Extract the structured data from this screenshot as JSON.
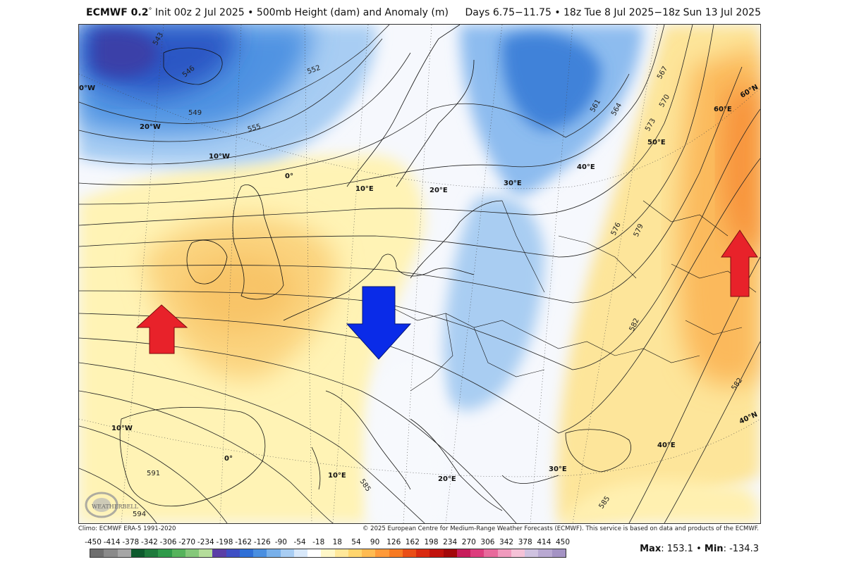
{
  "header": {
    "model": "ECMWF 0.2",
    "degree": "°",
    "init": "Init 00z 2 Jul 2025",
    "sep": "•",
    "field": "500mb Height (dam) and Anomaly (m)",
    "valid": "Days 6.75−11.75 • 18z Tue 8 Jul 2025−18z Sun 13 Jul 2025"
  },
  "footer": {
    "climo": "Climo: ECMWF ERA-5 1991-2020",
    "credit": "© 2025 European Centre for Medium-Range Weather Forecasts (ECMWF). This service is based on data and products of the ECMWF."
  },
  "stats": {
    "max_label": "Max",
    "max_value": "153.1",
    "sep": "•",
    "min_label": "Min",
    "min_value": "-134.3"
  },
  "logo_text": "WEATHERBELL",
  "colorbar": {
    "labels": [
      "-450",
      "-414",
      "-378",
      "-342",
      "-306",
      "-270",
      "-234",
      "-198",
      "-162",
      "-126",
      "-90",
      "-54",
      "-18",
      "18",
      "54",
      "90",
      "126",
      "162",
      "198",
      "234",
      "270",
      "306",
      "342",
      "378",
      "414",
      "450"
    ],
    "colors": [
      "#6e6e6e",
      "#8a8a8a",
      "#a6a6a6",
      "#0d5a2d",
      "#1e7a3c",
      "#2f9a4a",
      "#56b35c",
      "#85c87a",
      "#b5dd9b",
      "#5b3fa6",
      "#3f4fc4",
      "#2f6fd6",
      "#4a8fe0",
      "#78b0ea",
      "#a8cdf3",
      "#d8e8fa",
      "#ffffff",
      "#fff7c8",
      "#ffe89a",
      "#ffd56e",
      "#ffbb52",
      "#ff9a3a",
      "#f77a22",
      "#ea4e16",
      "#d92a10",
      "#c1120c",
      "#a3080a",
      "#c71d5b",
      "#dd3d7d",
      "#e86a9c",
      "#f09abd",
      "#f5c2d7",
      "#cfc2e0",
      "#b9a9d2",
      "#a493c4"
    ]
  },
  "map": {
    "height_labels": [
      "543",
      "546",
      "549",
      "552",
      "555",
      "561",
      "564",
      "567",
      "570",
      "573",
      "576",
      "579",
      "582",
      "585",
      "591",
      "594",
      "585",
      "582"
    ],
    "lon_labels": [
      "0°W",
      "20°W",
      "10°W",
      "0°",
      "10°E",
      "20°E",
      "30°E",
      "40°E",
      "50°E",
      "60°E",
      "10°W",
      "0°",
      "10°E",
      "20°E",
      "30°E",
      "40°E"
    ],
    "lat_labels": [
      "60°N",
      "40°N"
    ],
    "arrows": [
      {
        "name": "ridge-arrow-west",
        "direction": "up",
        "color": "#e8222a"
      },
      {
        "name": "trough-arrow-central",
        "direction": "down",
        "color": "#0a2be8"
      },
      {
        "name": "ridge-arrow-east",
        "direction": "up",
        "color": "#e8222a"
      }
    ]
  }
}
